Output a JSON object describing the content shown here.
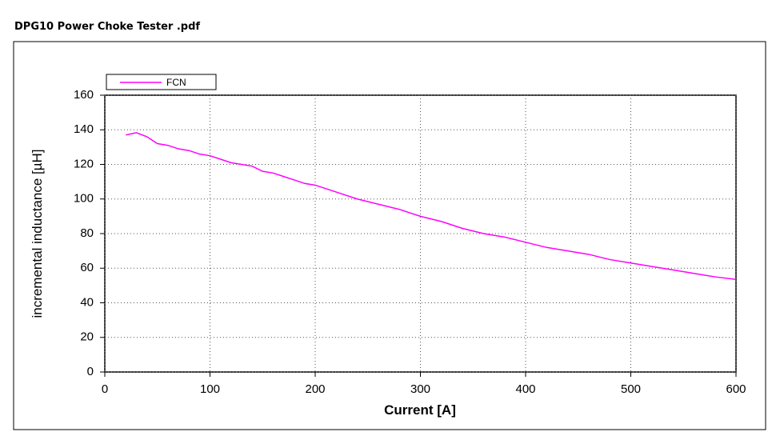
{
  "chart_data": {
    "type": "line",
    "window_title": "DPG10 Power Choke Tester .pdf",
    "xlabel": "Current [A]",
    "ylabel": "incremental inductance [µH]",
    "x": [
      20,
      30,
      40,
      50,
      60,
      70,
      80,
      90,
      100,
      110,
      120,
      130,
      140,
      150,
      160,
      170,
      180,
      190,
      200,
      220,
      240,
      260,
      280,
      300,
      320,
      340,
      360,
      380,
      400,
      420,
      440,
      460,
      480,
      500,
      520,
      540,
      560,
      580,
      600
    ],
    "series": [
      {
        "name": "FCN",
        "color": "#ff00ff",
        "values": [
          137,
          138.3,
          136,
          132,
          131,
          129,
          128,
          126,
          125,
          123,
          121,
          120,
          119,
          116,
          115,
          113,
          111,
          109,
          108,
          104,
          100,
          97,
          94,
          90,
          87,
          83,
          80,
          78,
          75,
          72,
          70,
          68,
          65,
          63,
          61,
          59,
          57,
          55,
          53.5
        ]
      }
    ],
    "xlim": [
      0,
      600
    ],
    "xticks": [
      0,
      100,
      200,
      300,
      400,
      500,
      600
    ],
    "ylim": [
      0,
      160
    ],
    "yticks": [
      0,
      20,
      40,
      60,
      80,
      100,
      120,
      140,
      160
    ],
    "grid": true,
    "legend": "top-left"
  }
}
